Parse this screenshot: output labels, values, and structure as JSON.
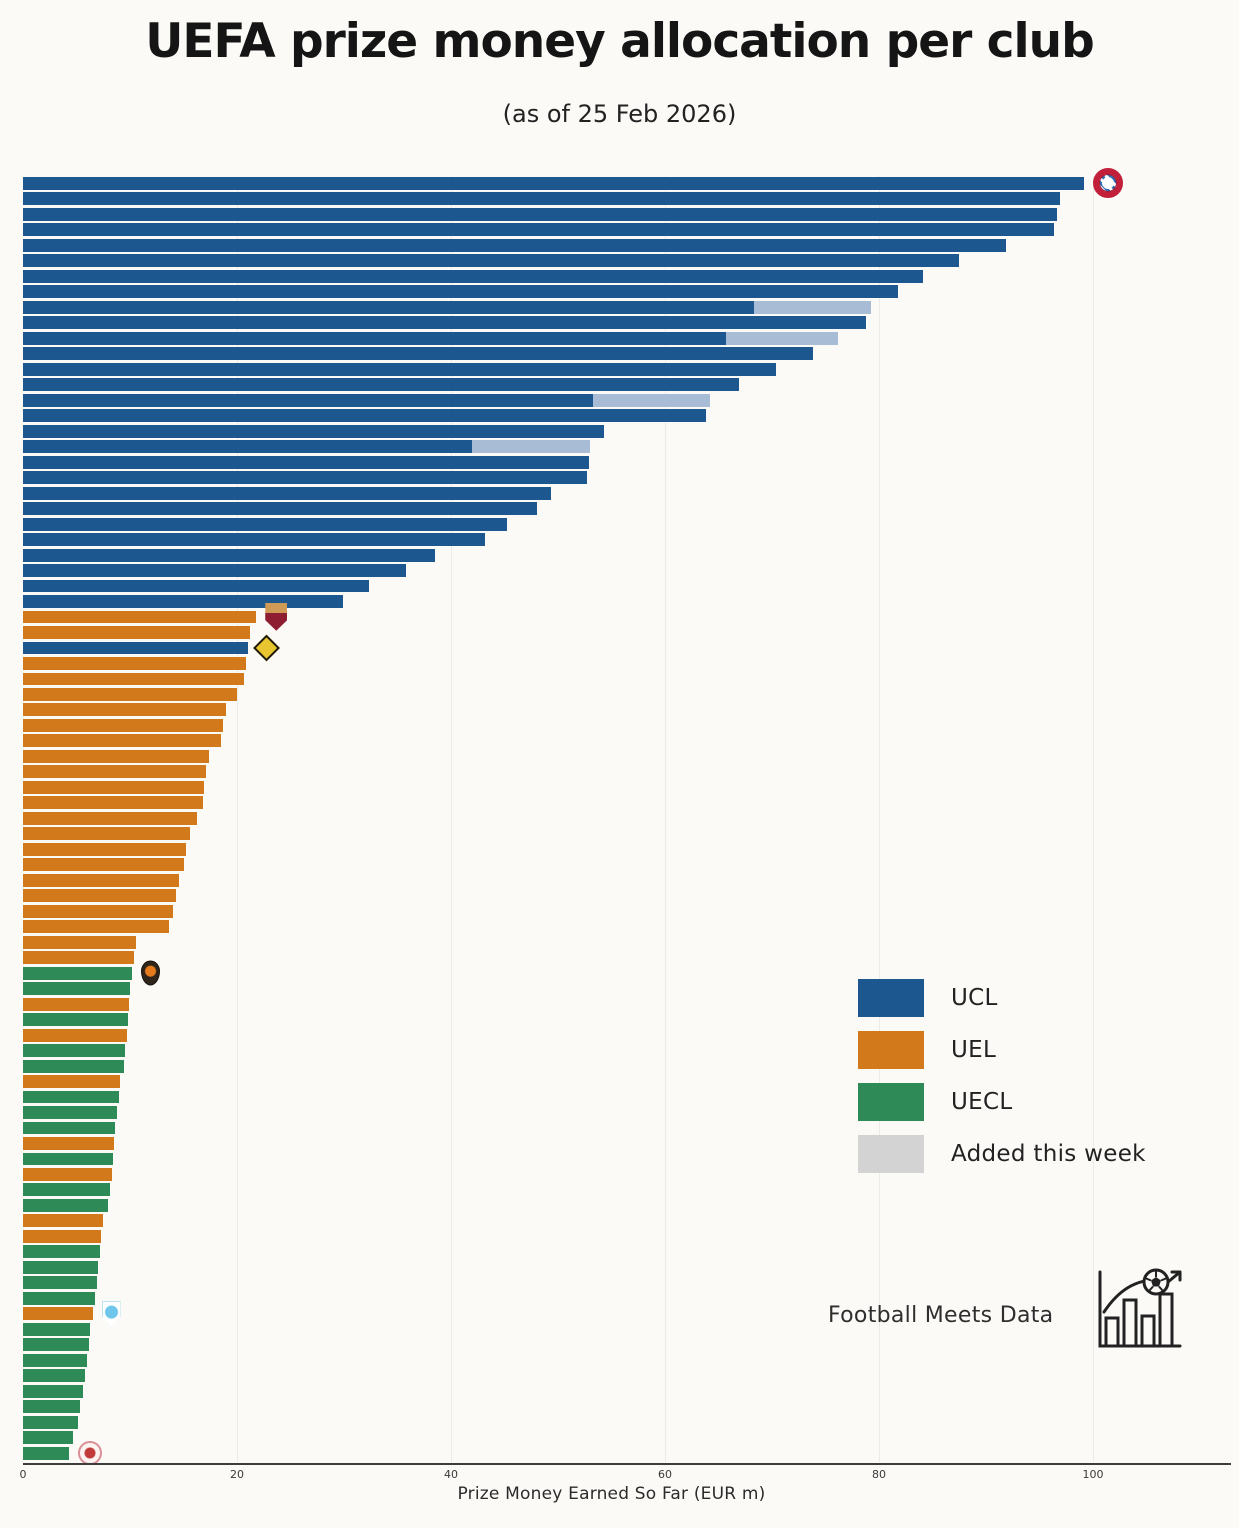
{
  "title": {
    "text": "UEFA prize money allocation per club"
  },
  "subtitle": {
    "text": "(as of 25 Feb 2026)"
  },
  "axis": {
    "label": "Prize Money Earned So Far (EUR m)",
    "ticks": [
      0,
      20,
      40,
      60,
      80,
      100
    ],
    "xlim": [
      0,
      110
    ]
  },
  "legend": {
    "items": [
      {
        "label": "UCL",
        "color": "#1d578f"
      },
      {
        "label": "UEL",
        "color": "#d2791b"
      },
      {
        "label": "UECL",
        "color": "#2e8b57"
      },
      {
        "label": "Added this week",
        "color": "#d3d3d3"
      }
    ]
  },
  "colors": {
    "UCL": "#1d578f",
    "UEL": "#d2791b",
    "UECL": "#2e8b57",
    "added_segment": "#a9bcd6",
    "gridline": "rgba(60,60,60,0.08)",
    "background": "#fbfaf7"
  },
  "watermark": {
    "text": "Football Meets Data",
    "icon": "football-bar-chart-icon"
  },
  "crest_icons": [
    "bayern-munich-crest",
    "as-roma-crest",
    "bodo-glimt-crest",
    "shakhtar-donetsk-crest",
    "malmo-ff-crest",
    "red-white-club-crest"
  ],
  "chart_data": {
    "type": "bar",
    "orientation": "horizontal",
    "title": "UEFA prize money allocation per club",
    "subtitle": "(as of 25 Feb 2026)",
    "xlabel": "Prize Money Earned So Far (EUR m)",
    "ylabel": "",
    "xlim": [
      0,
      110
    ],
    "grid": "vertical-faint",
    "legend_position": "center-right",
    "note": "83 unlabeled club bars sorted descending; competition encoded by color; light segments = amount added this week; small club crests mark select bars",
    "bars": [
      {
        "value": 99.2,
        "competition": "UCL",
        "crest": "bayern-munich-crest"
      },
      {
        "value": 96.9,
        "competition": "UCL"
      },
      {
        "value": 96.6,
        "competition": "UCL"
      },
      {
        "value": 96.4,
        "competition": "UCL"
      },
      {
        "value": 91.9,
        "competition": "UCL"
      },
      {
        "value": 87.5,
        "competition": "UCL"
      },
      {
        "value": 84.1,
        "competition": "UCL"
      },
      {
        "value": 81.8,
        "competition": "UCL"
      },
      {
        "value": 79.3,
        "competition": "UCL",
        "base_value": 68.3
      },
      {
        "value": 78.8,
        "competition": "UCL"
      },
      {
        "value": 76.2,
        "competition": "UCL",
        "base_value": 65.7
      },
      {
        "value": 73.8,
        "competition": "UCL"
      },
      {
        "value": 70.4,
        "competition": "UCL"
      },
      {
        "value": 66.9,
        "competition": "UCL"
      },
      {
        "value": 64.2,
        "competition": "UCL",
        "base_value": 53.3
      },
      {
        "value": 63.8,
        "competition": "UCL"
      },
      {
        "value": 54.3,
        "competition": "UCL"
      },
      {
        "value": 53.0,
        "competition": "UCL",
        "base_value": 42.0
      },
      {
        "value": 52.9,
        "competition": "UCL"
      },
      {
        "value": 52.7,
        "competition": "UCL"
      },
      {
        "value": 49.3,
        "competition": "UCL"
      },
      {
        "value": 48.0,
        "competition": "UCL"
      },
      {
        "value": 45.2,
        "competition": "UCL"
      },
      {
        "value": 43.2,
        "competition": "UCL"
      },
      {
        "value": 38.5,
        "competition": "UCL"
      },
      {
        "value": 35.8,
        "competition": "UCL"
      },
      {
        "value": 32.3,
        "competition": "UCL"
      },
      {
        "value": 29.9,
        "competition": "UCL"
      },
      {
        "value": 21.8,
        "competition": "UEL",
        "crest": "as-roma-crest"
      },
      {
        "value": 21.2,
        "competition": "UEL"
      },
      {
        "value": 21.0,
        "competition": "UCL",
        "crest": "bodo-glimt-crest"
      },
      {
        "value": 20.8,
        "competition": "UEL"
      },
      {
        "value": 20.7,
        "competition": "UEL"
      },
      {
        "value": 20.0,
        "competition": "UEL"
      },
      {
        "value": 19.0,
        "competition": "UEL"
      },
      {
        "value": 18.7,
        "competition": "UEL"
      },
      {
        "value": 18.5,
        "competition": "UEL"
      },
      {
        "value": 17.4,
        "competition": "UEL"
      },
      {
        "value": 17.1,
        "competition": "UEL"
      },
      {
        "value": 16.9,
        "competition": "UEL"
      },
      {
        "value": 16.8,
        "competition": "UEL"
      },
      {
        "value": 16.3,
        "competition": "UEL"
      },
      {
        "value": 15.6,
        "competition": "UEL"
      },
      {
        "value": 15.2,
        "competition": "UEL"
      },
      {
        "value": 15.0,
        "competition": "UEL"
      },
      {
        "value": 14.6,
        "competition": "UEL"
      },
      {
        "value": 14.3,
        "competition": "UEL"
      },
      {
        "value": 14.0,
        "competition": "UEL"
      },
      {
        "value": 13.6,
        "competition": "UEL"
      },
      {
        "value": 10.6,
        "competition": "UEL"
      },
      {
        "value": 10.4,
        "competition": "UEL"
      },
      {
        "value": 10.2,
        "competition": "UECL",
        "crest": "shakhtar-donetsk-crest"
      },
      {
        "value": 10.0,
        "competition": "UECL"
      },
      {
        "value": 9.9,
        "competition": "UEL"
      },
      {
        "value": 9.8,
        "competition": "UECL"
      },
      {
        "value": 9.7,
        "competition": "UEL"
      },
      {
        "value": 9.5,
        "competition": "UECL"
      },
      {
        "value": 9.4,
        "competition": "UECL"
      },
      {
        "value": 9.1,
        "competition": "UEL"
      },
      {
        "value": 9.0,
        "competition": "UECL"
      },
      {
        "value": 8.8,
        "competition": "UECL"
      },
      {
        "value": 8.6,
        "competition": "UECL"
      },
      {
        "value": 8.5,
        "competition": "UEL"
      },
      {
        "value": 8.4,
        "competition": "UECL"
      },
      {
        "value": 8.3,
        "competition": "UEL"
      },
      {
        "value": 8.1,
        "competition": "UECL"
      },
      {
        "value": 7.9,
        "competition": "UECL"
      },
      {
        "value": 7.5,
        "competition": "UEL"
      },
      {
        "value": 7.3,
        "competition": "UEL"
      },
      {
        "value": 7.2,
        "competition": "UECL"
      },
      {
        "value": 7.0,
        "competition": "UECL"
      },
      {
        "value": 6.9,
        "competition": "UECL"
      },
      {
        "value": 6.7,
        "competition": "UECL"
      },
      {
        "value": 6.5,
        "competition": "UEL",
        "crest": "malmo-ff-crest"
      },
      {
        "value": 6.3,
        "competition": "UECL"
      },
      {
        "value": 6.2,
        "competition": "UECL"
      },
      {
        "value": 6.0,
        "competition": "UECL"
      },
      {
        "value": 5.8,
        "competition": "UECL"
      },
      {
        "value": 5.6,
        "competition": "UECL"
      },
      {
        "value": 5.3,
        "competition": "UECL"
      },
      {
        "value": 5.1,
        "competition": "UECL"
      },
      {
        "value": 4.7,
        "competition": "UECL"
      },
      {
        "value": 4.3,
        "competition": "UECL",
        "crest": "red-white-club-crest"
      }
    ]
  }
}
